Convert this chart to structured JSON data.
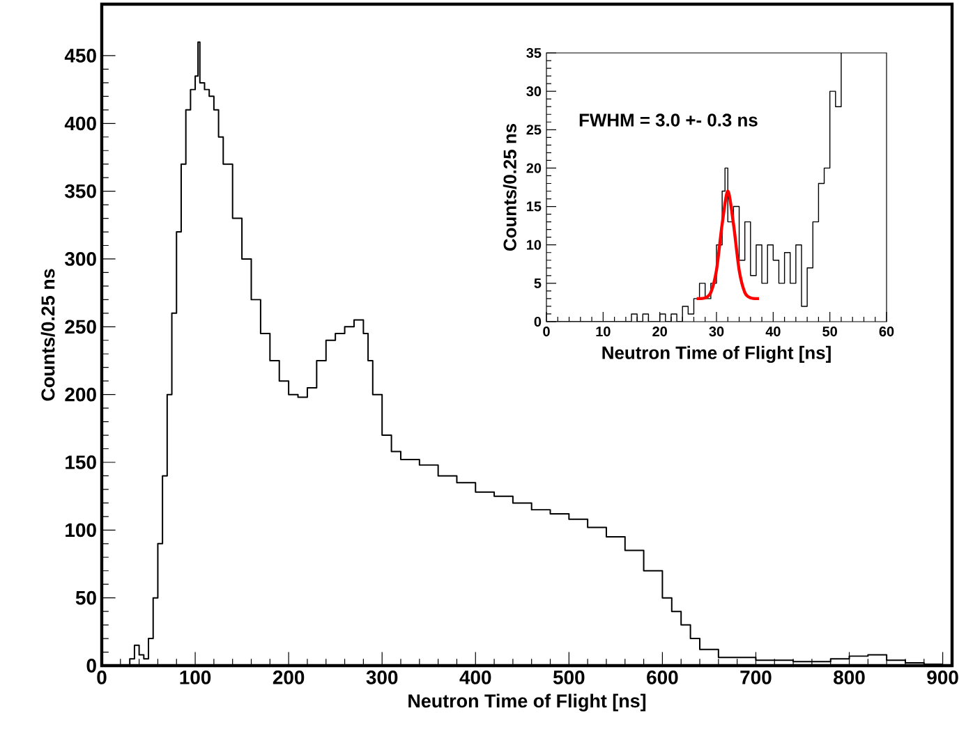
{
  "chart_data": [
    {
      "type": "step",
      "xlabel": "Neutron Time of Flight [ns]",
      "ylabel": "Counts/0.25 ns",
      "xlim": [
        0,
        910
      ],
      "ylim": [
        0,
        488
      ],
      "xticks": [
        0,
        100,
        200,
        300,
        400,
        500,
        600,
        700,
        800,
        900
      ],
      "yticks": [
        0,
        50,
        100,
        150,
        200,
        250,
        300,
        350,
        400,
        450
      ],
      "x": [
        20,
        30,
        35,
        40,
        45,
        50,
        55,
        60,
        65,
        70,
        75,
        80,
        85,
        90,
        95,
        100,
        103,
        105,
        110,
        115,
        120,
        125,
        130,
        140,
        150,
        160,
        170,
        180,
        190,
        200,
        210,
        220,
        230,
        240,
        250,
        260,
        270,
        280,
        285,
        290,
        300,
        310,
        320,
        340,
        360,
        380,
        400,
        420,
        440,
        460,
        480,
        500,
        520,
        540,
        560,
        580,
        600,
        610,
        620,
        630,
        640,
        660,
        700,
        740,
        780,
        800,
        820,
        840,
        860,
        880,
        900
      ],
      "series": [
        {
          "color": "#000000",
          "values": [
            0,
            5,
            15,
            8,
            5,
            20,
            50,
            90,
            140,
            200,
            260,
            320,
            370,
            410,
            425,
            435,
            460,
            430,
            425,
            420,
            410,
            390,
            370,
            330,
            300,
            270,
            245,
            225,
            210,
            200,
            198,
            205,
            225,
            240,
            245,
            250,
            255,
            245,
            225,
            200,
            170,
            158,
            152,
            148,
            140,
            135,
            128,
            125,
            120,
            115,
            112,
            108,
            102,
            95,
            85,
            70,
            50,
            40,
            30,
            20,
            12,
            6,
            4,
            3,
            5,
            7,
            8,
            4,
            2,
            1,
            1
          ]
        }
      ]
    },
    {
      "type": "step",
      "xlabel": "Neutron Time of Flight [ns]",
      "ylabel": "Counts/0.25 ns",
      "annotations": [
        "FWHM = 3.0 +- 0.3 ns"
      ],
      "xlim": [
        0,
        60
      ],
      "ylim": [
        0,
        35
      ],
      "xticks": [
        0,
        10,
        20,
        30,
        40,
        50,
        60
      ],
      "yticks": [
        0,
        5,
        10,
        15,
        20,
        25,
        30,
        35
      ],
      "series": [
        {
          "color": "#000000",
          "x": [
            0,
            14,
            15,
            16,
            17,
            18,
            20,
            21,
            22,
            23,
            24,
            25,
            26,
            27,
            28,
            29,
            30,
            31,
            31.5,
            32,
            33,
            34,
            35,
            36,
            37,
            38,
            39,
            40,
            41,
            42,
            43,
            44,
            45,
            46,
            47,
            48,
            49,
            50,
            51,
            52
          ],
          "values": [
            0,
            0,
            1,
            0,
            1,
            0,
            1,
            0,
            1,
            0,
            2,
            1,
            3,
            5,
            3,
            5,
            10,
            17,
            20,
            13,
            15,
            8,
            13,
            6,
            10,
            5,
            10,
            8,
            5,
            9,
            5,
            10,
            2,
            7,
            13,
            18,
            20,
            30,
            28,
            35
          ]
        },
        {
          "type": "line",
          "color": "#ff0000",
          "x": [
            26.5,
            28,
            29,
            30,
            31,
            32,
            33,
            34,
            35,
            36,
            37.5
          ],
          "values": [
            3,
            3.1,
            3.8,
            6.7,
            12.7,
            17,
            12.7,
            6.7,
            3.8,
            3.1,
            3
          ]
        }
      ]
    }
  ]
}
